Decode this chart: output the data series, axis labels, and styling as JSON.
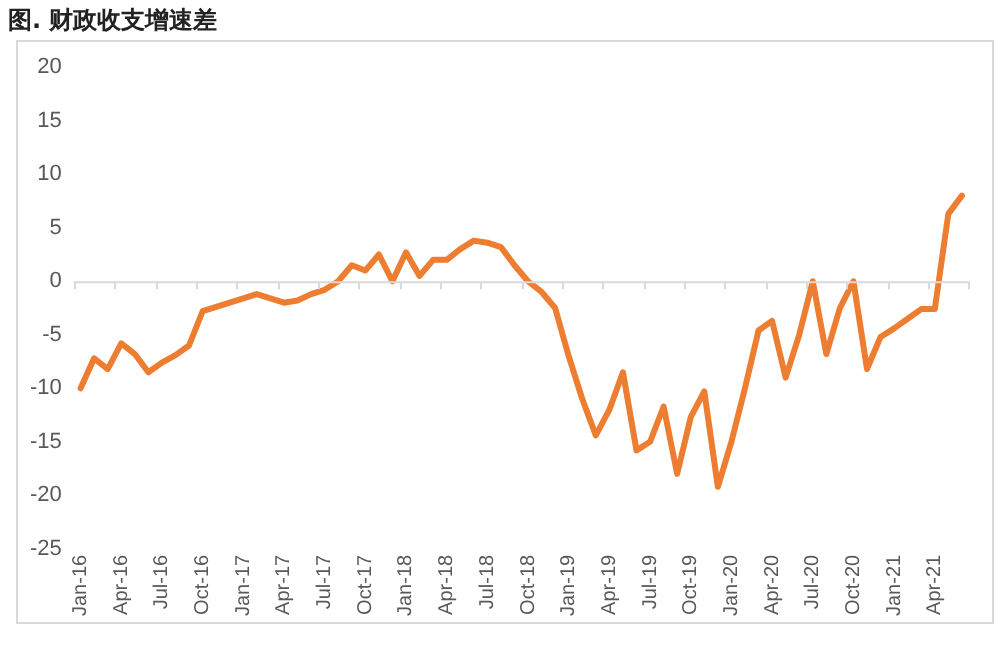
{
  "chart_data": {
    "type": "line",
    "title": "图. 财政收支增速差",
    "categories": [
      "Jan-16",
      null,
      null,
      "Apr-16",
      null,
      null,
      "Jul-16",
      null,
      null,
      "Oct-16",
      null,
      null,
      "Jan-17",
      null,
      null,
      "Apr-17",
      null,
      null,
      "Jul-17",
      null,
      null,
      "Oct-17",
      null,
      null,
      "Jan-18",
      null,
      null,
      "Apr-18",
      null,
      null,
      "Jul-18",
      null,
      null,
      "Oct-18",
      null,
      null,
      "Jan-19",
      null,
      null,
      "Apr-19",
      null,
      null,
      "Jul-19",
      null,
      null,
      "Oct-19",
      null,
      null,
      "Jan-20",
      null,
      null,
      "Apr-20",
      null,
      null,
      "Jul-20",
      null,
      null,
      "Oct-20",
      null,
      null,
      "Jan-21",
      null,
      null,
      "Apr-21",
      null,
      null
    ],
    "series": [
      {
        "color": "#ed7d31",
        "values": [
          -10,
          -7.2,
          -8.2,
          -5.8,
          -6.8,
          -8.5,
          -7.6,
          -6.9,
          -6,
          -2.8,
          -2.4,
          -2.0,
          -1.6,
          -1.2,
          -1.6,
          -2.0,
          -1.8,
          -1.2,
          -0.8,
          0,
          1.5,
          1.0,
          2.5,
          0,
          2.7,
          0.5,
          2.0,
          2.0,
          3.0,
          3.8,
          3.6,
          3.2,
          1.5,
          0,
          -1,
          -2.5,
          -7,
          -11,
          -14.4,
          -12,
          -8.5,
          -15.8,
          -15,
          -11.7,
          -18,
          -12.7,
          -10.3,
          -19.2,
          -15,
          -10,
          -4.6,
          -3.7,
          -9,
          -5,
          0,
          -6.8,
          -2.5,
          0,
          -8.2,
          -5.2,
          -4.4,
          -3.5,
          -2.6,
          -2.6,
          6.3,
          8
        ]
      }
    ],
    "ylim": [
      -25,
      20
    ],
    "yticks": [
      -25,
      -20,
      -15,
      -10,
      -5,
      0,
      5,
      10,
      15,
      20
    ],
    "grid": false,
    "ref_lines": [
      {
        "axis": "y",
        "value": 0,
        "color": "#d9d9d9"
      }
    ],
    "legend": false,
    "marker": "none",
    "line_style": "solid"
  }
}
